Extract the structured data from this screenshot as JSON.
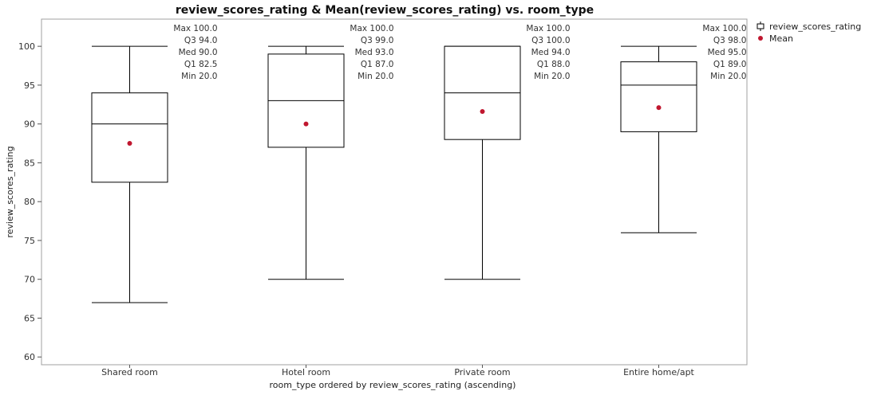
{
  "chart_data": {
    "type": "box",
    "title": "review_scores_rating & Mean(review_scores_rating) vs. room_type",
    "xlabel": "room_type ordered by review_scores_rating (ascending)",
    "ylabel": "review_scores_rating",
    "ylim": [
      59,
      103.5
    ],
    "yticks": [
      60,
      65,
      70,
      75,
      80,
      85,
      90,
      95,
      100
    ],
    "grid": false,
    "legend_position": "top-right",
    "legend": {
      "box_label": "review_scores_rating",
      "mean_label": "Mean"
    },
    "colors": {
      "box": "#000000",
      "mean": "#c0172f",
      "frame": "#a0a0a0"
    },
    "categories": [
      {
        "name": "Shared room",
        "max": 100,
        "q3": 94,
        "median": 90,
        "q1": 82.5,
        "min": 20,
        "whisker_low": 67,
        "whisker_high": 100,
        "mean": 87.5,
        "labels": [
          "Max 100.0",
          "Q3  94.0",
          "Med 90.0",
          "Q1  82.5",
          "Min 20.0"
        ]
      },
      {
        "name": "Hotel room",
        "max": 100,
        "q3": 99,
        "median": 93,
        "q1": 87,
        "min": 20,
        "whisker_low": 70,
        "whisker_high": 100,
        "mean": 90,
        "labels": [
          "Max 100.0",
          "Q3  99.0",
          "Med 93.0",
          "Q1  87.0",
          "Min 20.0"
        ]
      },
      {
        "name": "Private room",
        "max": 100,
        "q3": 100,
        "median": 94,
        "q1": 88,
        "min": 20,
        "whisker_low": 70,
        "whisker_high": 100,
        "mean": 91.6,
        "labels": [
          "Max 100.0",
          "Q3  100.0",
          "Med 94.0",
          "Q1  88.0",
          "Min 20.0"
        ]
      },
      {
        "name": "Entire home/apt",
        "max": 100,
        "q3": 98,
        "median": 95,
        "q1": 89,
        "min": 20,
        "whisker_low": 76,
        "whisker_high": 100,
        "mean": 92.1,
        "labels": [
          "Max 100.0",
          "Q3  98.0",
          "Med 95.0",
          "Q1  89.0",
          "Min 20.0"
        ]
      }
    ]
  }
}
